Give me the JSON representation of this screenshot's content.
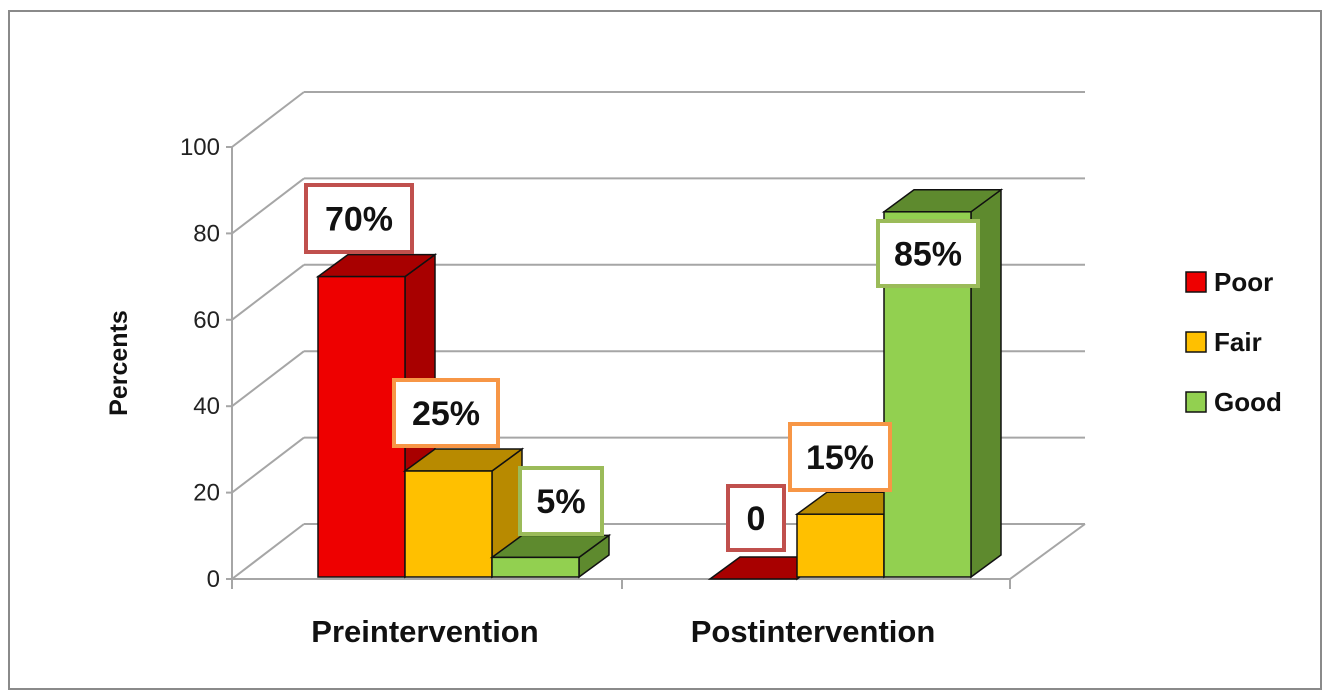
{
  "chart_data": {
    "type": "bar",
    "categories": [
      "Preintervention",
      "Postintervention"
    ],
    "series": [
      {
        "name": "Poor",
        "values": [
          70,
          0
        ],
        "color": "#ee0000",
        "side_color": "#a80000",
        "label_border": "#c0504d"
      },
      {
        "name": "Fair",
        "values": [
          25,
          15
        ],
        "color": "#ffc000",
        "side_color": "#b88a00",
        "label_border": "#f79646"
      },
      {
        "name": "Good",
        "values": [
          5,
          85
        ],
        "color": "#92d050",
        "side_color": "#5e8a2e",
        "label_border": "#9bbb59"
      }
    ],
    "data_labels": [
      [
        "70%",
        "0"
      ],
      [
        "25%",
        "15%"
      ],
      [
        "5%",
        "85%"
      ]
    ],
    "ylabel": "Percents",
    "ylim": [
      0,
      100
    ],
    "yticks": [
      "0",
      "20",
      "40",
      "60",
      "80",
      "100"
    ],
    "grid": true,
    "legend_position": "right"
  }
}
